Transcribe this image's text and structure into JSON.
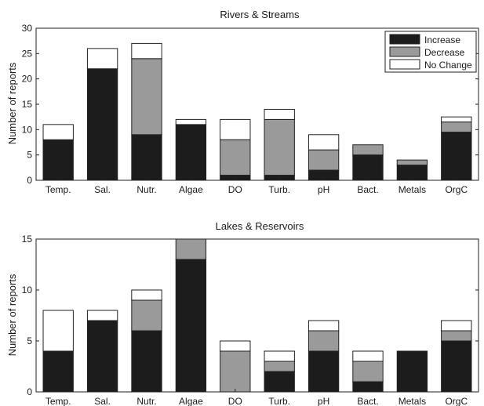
{
  "chart_data": [
    {
      "type": "bar",
      "stacked": true,
      "title": "Rivers & Streams",
      "xlabel": "",
      "ylabel": "Number of reports",
      "ylim": [
        0,
        30
      ],
      "yticks": [
        0,
        5,
        10,
        15,
        20,
        25,
        30
      ],
      "categories": [
        "Temp.",
        "Sal.",
        "Nutr.",
        "Algae",
        "DO",
        "Turb.",
        "pH",
        "Bact.",
        "Metals",
        "OrgC"
      ],
      "series": [
        {
          "name": "Increase",
          "color": "#1c1c1c",
          "values": [
            8,
            22,
            9,
            11,
            1,
            1,
            2,
            5,
            3,
            9.5
          ]
        },
        {
          "name": "Decrease",
          "color": "#9a9a9a",
          "values": [
            0,
            0,
            15,
            0,
            7,
            11,
            4,
            2,
            1,
            2
          ]
        },
        {
          "name": "No Change",
          "color": "#ffffff",
          "values": [
            3,
            4,
            3,
            1,
            4,
            2,
            3,
            0,
            0,
            1
          ]
        }
      ],
      "legend_position": "top-right",
      "grid": false
    },
    {
      "type": "bar",
      "stacked": true,
      "title": "Lakes & Reservoirs",
      "xlabel": "",
      "ylabel": "Number of reports",
      "ylim": [
        0,
        15
      ],
      "yticks": [
        0,
        5,
        10,
        15
      ],
      "categories": [
        "Temp.",
        "Sal.",
        "Nutr.",
        "Algae",
        "DO",
        "Turb.",
        "pH",
        "Bact.",
        "Metals",
        "OrgC"
      ],
      "series": [
        {
          "name": "Increase",
          "color": "#1c1c1c",
          "values": [
            4,
            7,
            6,
            13,
            0,
            2,
            4,
            1,
            4,
            5
          ]
        },
        {
          "name": "Decrease",
          "color": "#9a9a9a",
          "values": [
            0,
            0,
            3,
            2,
            4,
            1,
            2,
            2,
            0,
            1
          ]
        },
        {
          "name": "No Change",
          "color": "#ffffff",
          "values": [
            4,
            1,
            1,
            0,
            1,
            1,
            1,
            1,
            0,
            1
          ]
        }
      ],
      "legend_position": "none",
      "grid": false
    }
  ]
}
